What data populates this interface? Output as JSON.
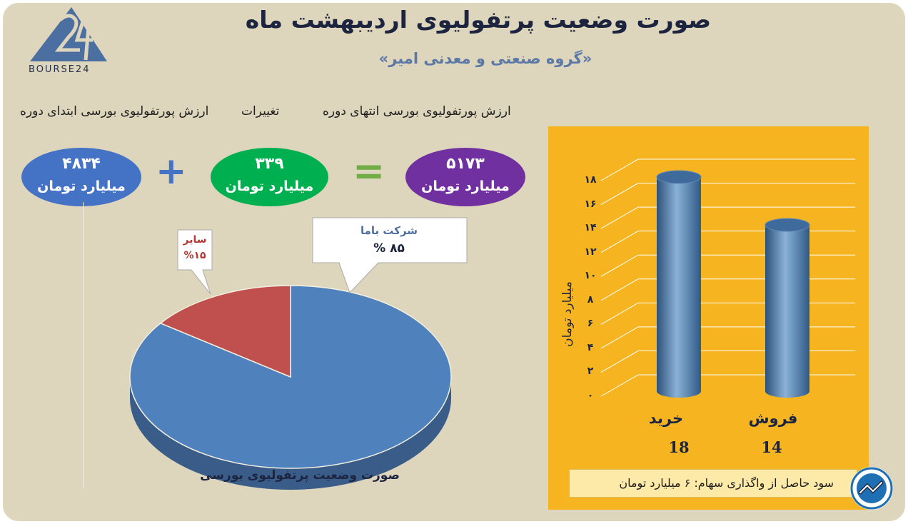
{
  "header": {
    "title": "صورت وضعیت پرتفولیوی اردیبهشت ماه",
    "subtitle": "«گروه صنعتی و معدنی امیر»"
  },
  "logo": {
    "text": "BOURSE24",
    "icon": "bourse24-logo"
  },
  "equation": {
    "end_label": "ارزش پورتفولیوی بورسی انتهای دوره",
    "change_label": "تغییرات",
    "start_label": "ارزش پورتفولیوی بورسی ابتدای دوره",
    "end_value": "۵۱۷۳",
    "change_value": "۳۳۹",
    "start_value": "۴۸۳۴",
    "unit": "میلیارد تومان",
    "equals_symbol": "=",
    "plus_symbol": "+",
    "colors": {
      "end": "#7030a0",
      "change": "#00b050",
      "start": "#4472c4",
      "operator_equals": "#70ad47",
      "operator_plus": "#4472c4"
    }
  },
  "chart_data": [
    {
      "type": "pie",
      "title": "صورت وضعیت پرتفولیوی بورسی",
      "slices": [
        {
          "label": "شرکت باما",
          "value": 85,
          "value_text": "۸۵ %",
          "color": "#4f81bd"
        },
        {
          "label": "سایر",
          "value": 15,
          "value_text": "%۱۵",
          "color": "#c0504d"
        }
      ]
    },
    {
      "type": "bar",
      "categories": [
        "خرید",
        "فروش"
      ],
      "values": [
        18,
        14
      ],
      "value_labels": [
        "18",
        "14"
      ],
      "ylabel": "میلیارد تومان",
      "ylim": [
        0,
        18
      ],
      "yticks": [
        "۰",
        "۲",
        "۴",
        "۶",
        "۸",
        "۱۰",
        "۱۲",
        "۱۴",
        "۱۶",
        "۱۸"
      ],
      "grid": true,
      "color": "#4f81bd",
      "background": "#f6b520"
    }
  ],
  "note": {
    "text": "سود حاصل از واگذاری سهام: ۶ میلیارد تومان",
    "icon": "trend-chart-icon"
  }
}
